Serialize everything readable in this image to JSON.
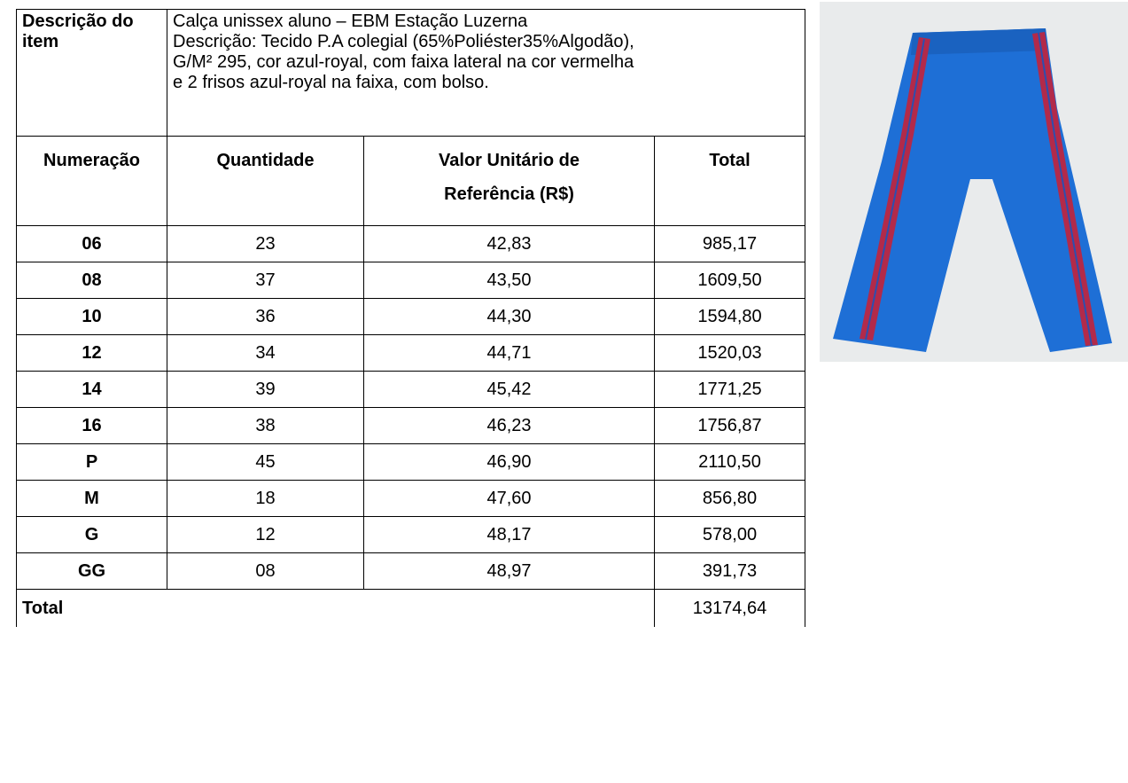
{
  "item": {
    "label": "Descrição do item",
    "description": [
      "Calça unissex aluno – EBM Estação Luzerna",
      "Descrição: Tecido P.A colegial (65%Poliéster35%Algodão),",
      "G/M²  295, cor azul-royal, com faixa lateral na cor vermelha",
      "e 2 frisos azul-royal na faixa, com bolso."
    ]
  },
  "table": {
    "headers": [
      "Numeração",
      "Quantidade",
      [
        "Valor Unitário de",
        "Referência (R$)"
      ],
      "Total"
    ],
    "rows": [
      [
        "06",
        "23",
        "42,83",
        "985,17"
      ],
      [
        "08",
        "37",
        "43,50",
        "1609,50"
      ],
      [
        "10",
        "36",
        "44,30",
        "1594,80"
      ],
      [
        "12",
        "34",
        "44,71",
        "1520,03"
      ],
      [
        "14",
        "39",
        "45,42",
        "1771,25"
      ],
      [
        "16",
        "38",
        "46,23",
        "1756,87"
      ],
      [
        "P",
        "45",
        "46,90",
        "2110,50"
      ],
      [
        "M",
        "18",
        "47,60",
        "856,80"
      ],
      [
        "G",
        "12",
        "48,17",
        "578,00"
      ],
      [
        "GG",
        "08",
        "48,97",
        "391,73"
      ]
    ],
    "total": {
      "label": "Total",
      "value": "13174,64"
    }
  }
}
